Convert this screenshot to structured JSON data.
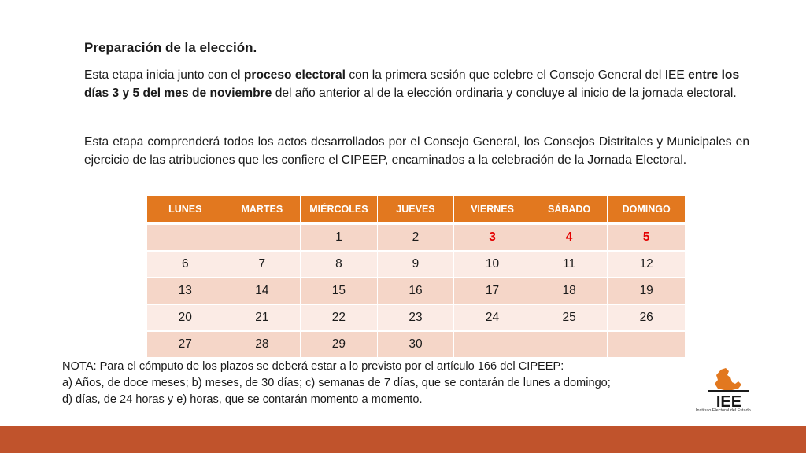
{
  "heading": "Preparación de la elección.",
  "paragraph1": {
    "t1": "Esta etapa inicia junto con el ",
    "b1": "proceso electoral",
    "t2": " con la primera sesión que celebre el Consejo General del IEE ",
    "b2": "entre los días 3 y 5 del mes de noviembre",
    "t3": " del año anterior al de la elección ordinaria y concluye al inicio de la jornada electoral."
  },
  "paragraph2": "Esta etapa comprenderá todos los actos desarrollados por el Consejo General, los Consejos Distritales y Municipales en ejercicio de las atribuciones que les confiere el CIPEEP, encaminados a la celebración de la Jornada Electoral.",
  "calendar": {
    "days": [
      "LUNES",
      "MARTES",
      "MIÉRCOLES",
      "JUEVES",
      "VIERNES",
      "SÁBADO",
      "DOMINGO"
    ],
    "weeks": [
      [
        "",
        "",
        "1",
        "2",
        "3",
        "4",
        "5"
      ],
      [
        "6",
        "7",
        "8",
        "9",
        "10",
        "11",
        "12"
      ],
      [
        "13",
        "14",
        "15",
        "16",
        "17",
        "18",
        "19"
      ],
      [
        "20",
        "21",
        "22",
        "23",
        "24",
        "25",
        "26"
      ],
      [
        "27",
        "28",
        "29",
        "30",
        "",
        "",
        ""
      ]
    ],
    "highlight_color": "#e40000",
    "header_color": "#e2781f"
  },
  "note": {
    "line1": "NOTA: Para el cómputo de los plazos se deberá estar a lo previsto por el artículo 166 del CIPEEP:",
    "line2": "a) Años, de doce meses; b) meses, de 30 días; c) semanas de 7 días, que se contarán de lunes a domingo;",
    "line3": "d) días, de 24 horas y e) horas, que se contarán momento a momento."
  },
  "logo": {
    "text": "IEE",
    "caption": "Instituto Electoral del Estado",
    "icon": "iee-logo"
  },
  "colors": {
    "bottom_bar": "#c0532c",
    "logo_orange": "#e2781f"
  }
}
